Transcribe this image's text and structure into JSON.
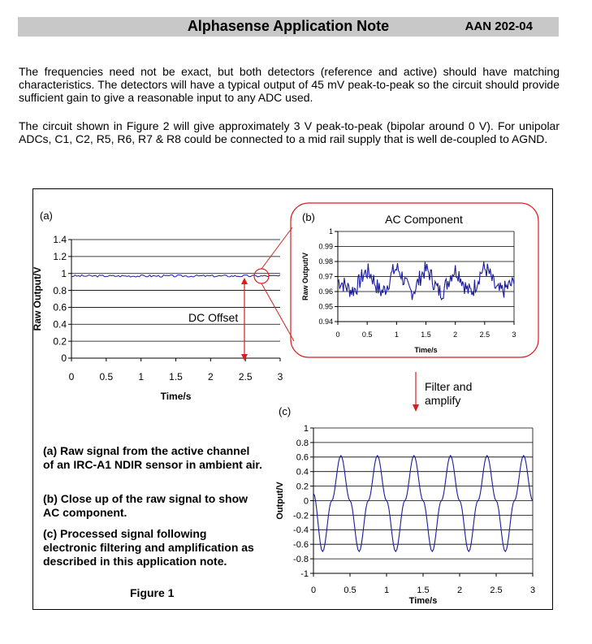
{
  "header": {
    "title": "Alphasense Application Note",
    "code": "AAN 202-04"
  },
  "body": {
    "para1": "The frequencies need not be exact, but both detectors (reference and active) should have matching characteristics.  The detectors will have a typical output of 45 mV peak-to-peak so the circuit should provide sufficient gain to give a reasonable input to any ADC used.",
    "para2": "The circuit shown in Figure 2 will give approximately 3 V peak-to-peak (bipolar around 0 V). For unipolar ADCs, C1, C2, R5, R6, R7 & R8 could be connected to a mid rail supply that is well de-coupled to AGND."
  },
  "figure": {
    "label_a": "(a)",
    "label_b": "(b)",
    "label_c": "(c)",
    "dc_offset": "DC Offset",
    "ac_component": "AC Component",
    "filter_1": "Filter and",
    "filter_2": "amplify",
    "caption_a": "(a) Raw signal from the active channel of an IRC-A1 NDIR sensor in ambient air.",
    "caption_b": "(b) Close up of the raw signal to show AC component.",
    "caption_c": "(c) Processed signal following electronic filtering and amplification as described in this application note.",
    "figure_label": "Figure 1",
    "colors": {
      "trace": "#1a1aa0",
      "highlight": "#d81f1f",
      "grid": "#000000"
    }
  },
  "chart_data": [
    {
      "type": "line",
      "panel": "(a)",
      "xlabel": "Time/s",
      "ylabel": "Raw Output/V",
      "xlim": [
        0,
        3
      ],
      "ylim": [
        0,
        1.4
      ],
      "xticks": [
        "0",
        "0.5",
        "1",
        "1.5",
        "2",
        "2.5",
        "3"
      ],
      "yticks": [
        "0",
        "0.2",
        "0.4",
        "0.6",
        "0.8",
        "1",
        "1.2",
        "1.4"
      ],
      "series": [
        {
          "x": [
            0,
            3
          ],
          "y": [
            0.97,
            0.97
          ]
        }
      ],
      "grid": "horizontal"
    },
    {
      "type": "line",
      "panel": "(b)",
      "title": "AC Component",
      "xlabel": "Time/s",
      "ylabel": "Raw Output/V",
      "xlim": [
        0,
        3
      ],
      "ylim": [
        0.94,
        1
      ],
      "xticks": [
        "0",
        "0.5",
        "1",
        "1.5",
        "2",
        "2.5",
        "3"
      ],
      "yticks": [
        "0.94",
        "0.95",
        "0.96",
        "0.97",
        "0.98",
        "0.99",
        "1"
      ],
      "series": [
        {
          "x": [
            0,
            0.25,
            0.5,
            0.75,
            1.0,
            1.25,
            1.5,
            1.75,
            2.0,
            2.25,
            2.5,
            2.75,
            3.0
          ],
          "y": [
            0.967,
            0.961,
            0.973,
            0.96,
            0.975,
            0.96,
            0.974,
            0.96,
            0.974,
            0.96,
            0.975,
            0.96,
            0.965
          ]
        }
      ],
      "grid": "horizontal"
    },
    {
      "type": "line",
      "panel": "(c)",
      "xlabel": "Time/s",
      "ylabel": "Output/V",
      "xlim": [
        0,
        3
      ],
      "ylim": [
        -1,
        1
      ],
      "xticks": [
        "0",
        "0.5",
        "1",
        "1.5",
        "2",
        "2.5",
        "3"
      ],
      "yticks": [
        "-1",
        "-0.8",
        "-0.6",
        "-0.4",
        "-0.2",
        "0",
        "0.2",
        "0.4",
        "0.6",
        "0.8",
        "1"
      ],
      "series": [
        {
          "x": [
            0,
            0.125,
            0.25,
            0.375,
            0.5,
            0.625,
            0.75,
            0.875,
            1.0,
            1.125,
            1.25,
            1.375,
            1.5,
            1.625,
            1.75,
            1.875,
            2.0,
            2.125,
            2.25,
            2.375,
            2.5,
            2.625,
            2.75,
            2.875,
            3.0
          ],
          "y": [
            0.1,
            -0.7,
            0.0,
            0.62,
            0.0,
            -0.7,
            0.0,
            0.62,
            0.0,
            -0.7,
            0.0,
            0.62,
            0.0,
            -0.7,
            0.0,
            0.62,
            0.0,
            -0.7,
            0.0,
            0.62,
            0.0,
            -0.7,
            0.0,
            0.62,
            0.0
          ]
        }
      ],
      "grid": "horizontal"
    }
  ]
}
